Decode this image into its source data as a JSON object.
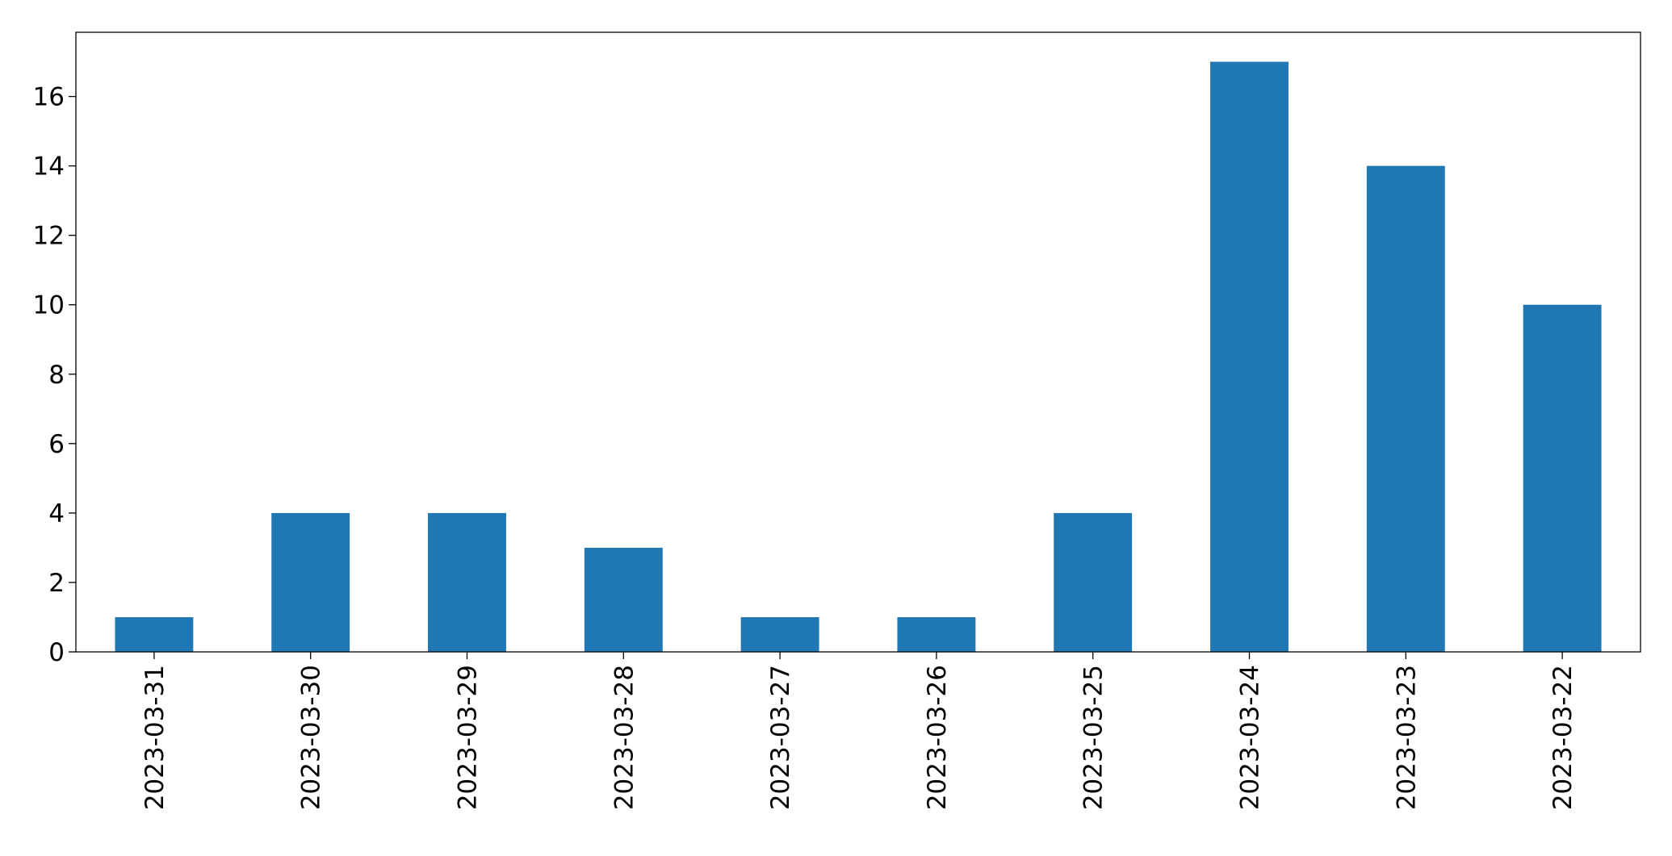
{
  "chart_data": {
    "type": "bar",
    "categories": [
      "2023-03-31",
      "2023-03-30",
      "2023-03-29",
      "2023-03-28",
      "2023-03-27",
      "2023-03-26",
      "2023-03-25",
      "2023-03-24",
      "2023-03-23",
      "2023-03-22"
    ],
    "values": [
      1,
      4,
      4,
      3,
      1,
      1,
      4,
      17,
      14,
      10
    ],
    "color": "#1f77b4",
    "ylim": [
      0,
      17.85
    ],
    "yticks": [
      0,
      2,
      4,
      6,
      8,
      10,
      12,
      14,
      16
    ],
    "grid": false
  }
}
